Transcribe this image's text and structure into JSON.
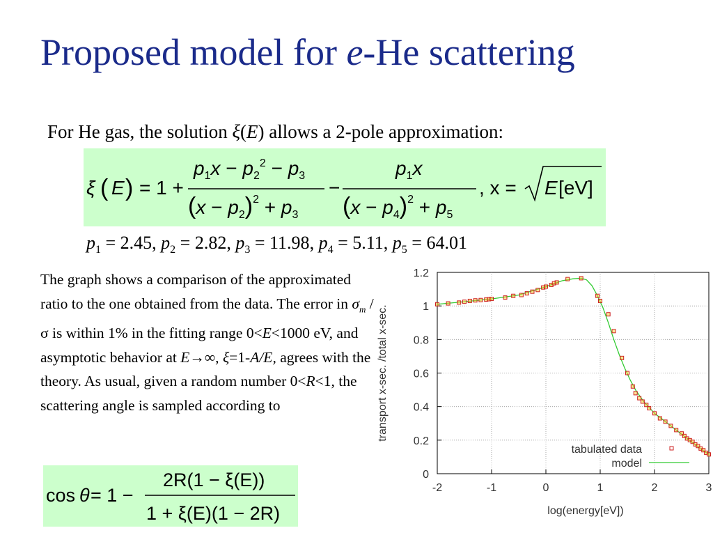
{
  "slide": {
    "title_prefix": "Proposed model for ",
    "title_italic": "e",
    "title_suffix": "-He scattering",
    "intro_pre": "For He gas, the solution ",
    "intro_xi": "ξ",
    "intro_mid": "(",
    "intro_E": "E",
    "intro_post": ") allows a 2-pole approximation:"
  },
  "equation1": {
    "lhs_xi": "ξ",
    "lhs_E": "E",
    "one_plus": "= 1 +",
    "minus": "−",
    "x_def": ", x = ",
    "sqrt_E": "E",
    "sqrt_unit": "[eV]"
  },
  "params": {
    "p1": "2.45",
    "p2": "2.82",
    "p3": "11.98",
    "p4": "5.11",
    "p5": "64.01"
  },
  "description": {
    "line1": "The graph shows a comparison of the approximated ratio to the one obtained from the data. The error in ",
    "sigma_m": "σ",
    "sub_m": "m",
    "slash_sigma": " / σ",
    "line2": " is within 1% in the fitting range 0<",
    "E1": "E",
    "line3": "<1000 eV, and asymptotic behavior at ",
    "E2": "E",
    "arrow_inf": "→∞,  ",
    "xi_asym": "ξ",
    "eq_asym": "=1-",
    "A_over_E": "A/E,",
    "line4": " agrees with the theory. As usual, given a random number 0<",
    "R1": "R",
    "line5": "<1, the scattering angle is sampled according to"
  },
  "equation2": {
    "cos": "cos",
    "theta": "θ",
    "one_minus": " = 1 −",
    "numerator": "2R(1 − ξ(E))",
    "denominator": "1 + ξ(E)(1 − 2R)"
  },
  "chart_data": {
    "type": "scatter",
    "xlabel": "log(energy[eV])",
    "ylabel": "transport x-sec. /total x-sec.",
    "xlim": [
      -2,
      3
    ],
    "ylim": [
      0,
      1.2
    ],
    "xticks": [
      "-2",
      "-1",
      "0",
      "1",
      "2",
      "3"
    ],
    "yticks": [
      "0",
      "0.2",
      "0.4",
      "0.6",
      "0.8",
      "1",
      "1.2"
    ],
    "grid": true,
    "legend_position": "bottom-right",
    "series": [
      {
        "name": "tabulated data",
        "color": "#cc2222",
        "x": [
          -2.0,
          -1.8,
          -1.6,
          -1.5,
          -1.4,
          -1.3,
          -1.2,
          -1.1,
          -1.05,
          -1.0,
          -0.75,
          -0.6,
          -0.45,
          -0.35,
          -0.25,
          -0.15,
          -0.05,
          0.0,
          0.1,
          0.15,
          0.2,
          0.4,
          0.65,
          0.95,
          1.0,
          1.15,
          1.25,
          1.4,
          1.5,
          1.6,
          1.65,
          1.72,
          1.78,
          1.85,
          1.9,
          2.0,
          2.1,
          2.2,
          2.3,
          2.4,
          2.5,
          2.55,
          2.6,
          2.65,
          2.7,
          2.75,
          2.8,
          2.85,
          2.9,
          2.95,
          3.0
        ],
        "y": [
          1.01,
          1.015,
          1.02,
          1.025,
          1.03,
          1.033,
          1.035,
          1.038,
          1.04,
          1.042,
          1.05,
          1.06,
          1.065,
          1.075,
          1.085,
          1.095,
          1.11,
          1.115,
          1.125,
          1.135,
          1.14,
          1.16,
          1.165,
          1.06,
          1.03,
          0.95,
          0.85,
          0.69,
          0.6,
          0.52,
          0.48,
          0.45,
          0.43,
          0.41,
          0.39,
          0.36,
          0.33,
          0.31,
          0.285,
          0.26,
          0.24,
          0.225,
          0.21,
          0.2,
          0.19,
          0.175,
          0.165,
          0.15,
          0.14,
          0.125,
          0.115
        ]
      },
      {
        "name": "model",
        "color": "#33cc33",
        "x": [
          -2.0,
          -1.5,
          -1.0,
          -0.5,
          0.0,
          0.3,
          0.5,
          0.65,
          0.75,
          0.85,
          0.95,
          1.05,
          1.15,
          1.25,
          1.35,
          1.45,
          1.55,
          1.65,
          1.8,
          2.0,
          2.2,
          2.4,
          2.6,
          2.8,
          3.0
        ],
        "y": [
          1.01,
          1.025,
          1.042,
          1.065,
          1.115,
          1.15,
          1.162,
          1.165,
          1.155,
          1.12,
          1.06,
          0.99,
          0.9,
          0.8,
          0.71,
          0.63,
          0.56,
          0.5,
          0.43,
          0.36,
          0.31,
          0.26,
          0.21,
          0.16,
          0.115
        ]
      }
    ]
  }
}
